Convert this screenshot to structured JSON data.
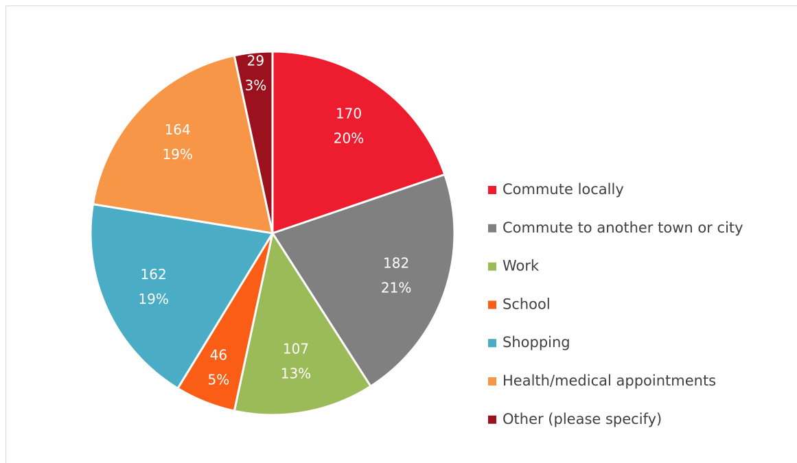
{
  "chart_data": {
    "type": "pie",
    "categories": [
      "Commute locally",
      "Commute to another town or city",
      "Work",
      "School",
      "Shopping",
      "Health/medical appointments",
      "Other (please specify)"
    ],
    "values": [
      170,
      182,
      107,
      46,
      162,
      164,
      29
    ],
    "percent_labels": [
      "20%",
      "21%",
      "13%",
      "5%",
      "19%",
      "19%",
      "3%"
    ],
    "colors": [
      "#ed1c2e",
      "#808080",
      "#9bbb59",
      "#f95d16",
      "#4bacc6",
      "#f79646",
      "#9b111e"
    ],
    "legend": "right"
  }
}
